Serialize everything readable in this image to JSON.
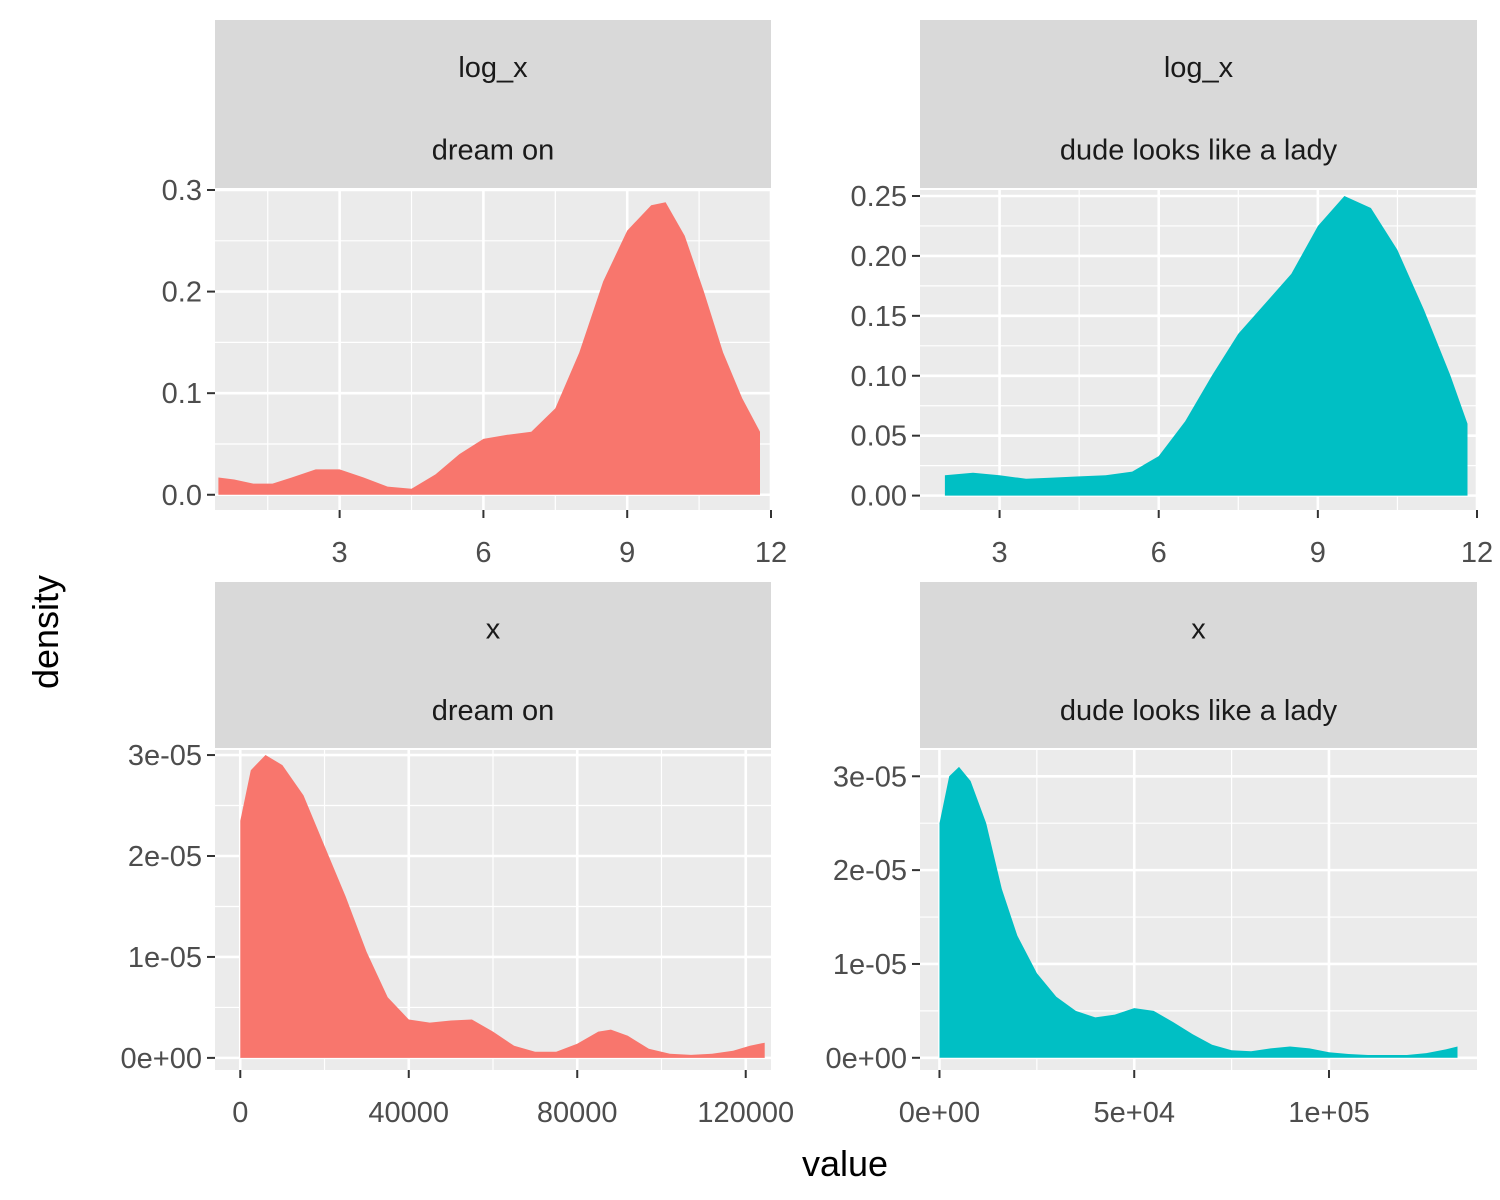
{
  "chart_data": {
    "type": "area",
    "xlabel": "value",
    "ylabel": "density",
    "grid": true,
    "legend": "none",
    "colors": {
      "dream on": "#F8766D",
      "dude looks like a lady": "#00BFC4",
      "panel_bg": "#EBEBEB",
      "strip_bg": "#D9D9D9"
    },
    "panels": [
      {
        "strip": [
          "log_x",
          "dream on"
        ],
        "color": "#F8766D",
        "xlim": [
          0.4,
          12.0
        ],
        "ylim": [
          -0.015,
          0.3
        ],
        "xticks": [
          3,
          6,
          9,
          12
        ],
        "xtick_labels": [
          "3",
          "6",
          "9",
          "12"
        ],
        "yticks": [
          0.0,
          0.1,
          0.2,
          0.3
        ],
        "ytick_labels": [
          "0.0",
          "0.1",
          "0.2",
          "0.3"
        ],
        "x": [
          0.47,
          0.8,
          1.2,
          1.6,
          2.0,
          2.5,
          3.0,
          3.5,
          4.0,
          4.5,
          5.0,
          5.5,
          6.0,
          6.5,
          7.0,
          7.5,
          8.0,
          8.5,
          9.0,
          9.5,
          9.8,
          10.2,
          10.6,
          11.0,
          11.4,
          11.77
        ],
        "y": [
          0.017,
          0.015,
          0.011,
          0.011,
          0.017,
          0.025,
          0.025,
          0.017,
          0.008,
          0.006,
          0.02,
          0.04,
          0.055,
          0.059,
          0.062,
          0.085,
          0.14,
          0.21,
          0.26,
          0.285,
          0.288,
          0.255,
          0.2,
          0.14,
          0.095,
          0.062
        ]
      },
      {
        "strip": [
          "log_x",
          "dude looks like a lady"
        ],
        "color": "#00BFC4",
        "xlim": [
          1.5,
          12.0
        ],
        "ylim": [
          -0.012,
          0.255
        ],
        "xticks": [
          3,
          6,
          9,
          12
        ],
        "xtick_labels": [
          "3",
          "6",
          "9",
          "12"
        ],
        "yticks": [
          0.0,
          0.05,
          0.1,
          0.15,
          0.2,
          0.25
        ],
        "ytick_labels": [
          "0.00",
          "0.05",
          "0.10",
          "0.15",
          "0.20",
          "0.25"
        ],
        "x": [
          1.97,
          2.5,
          3.0,
          3.5,
          4.0,
          4.5,
          5.0,
          5.5,
          6.0,
          6.5,
          7.0,
          7.5,
          8.0,
          8.5,
          9.0,
          9.5,
          10.0,
          10.5,
          11.0,
          11.5,
          11.82
        ],
        "y": [
          0.017,
          0.019,
          0.017,
          0.014,
          0.015,
          0.016,
          0.017,
          0.02,
          0.033,
          0.062,
          0.1,
          0.135,
          0.16,
          0.185,
          0.225,
          0.25,
          0.24,
          0.205,
          0.155,
          0.1,
          0.06
        ]
      },
      {
        "strip": [
          "x",
          "dream on"
        ],
        "color": "#F8766D",
        "xlim": [
          -6000,
          126000
        ],
        "ylim": [
          -1.2e-06,
          3.05e-05
        ],
        "xticks": [
          0,
          40000,
          80000,
          120000
        ],
        "xtick_labels": [
          "0",
          "40000",
          "80000",
          "120000"
        ],
        "yticks": [
          0,
          1e-05,
          2e-05,
          3e-05
        ],
        "ytick_labels": [
          "0e+00",
          "1e-05",
          "2e-05",
          "3e-05"
        ],
        "x": [
          0,
          2500,
          6000,
          10000,
          15000,
          20000,
          25000,
          30000,
          35000,
          40000,
          45000,
          50000,
          55000,
          60000,
          65000,
          70000,
          75000,
          80000,
          85000,
          88000,
          92000,
          97000,
          102000,
          107000,
          112000,
          117000,
          121000,
          124500
        ],
        "y": [
          2.35e-05,
          2.85e-05,
          3e-05,
          2.9e-05,
          2.6e-05,
          2.1e-05,
          1.6e-05,
          1.05e-05,
          6e-06,
          3.8e-06,
          3.5e-06,
          3.7e-06,
          3.8e-06,
          2.6e-06,
          1.2e-06,
          6e-07,
          6e-07,
          1.4e-06,
          2.6e-06,
          2.8e-06,
          2.2e-06,
          9e-07,
          4e-07,
          3e-07,
          4e-07,
          7e-07,
          1.2e-06,
          1.5e-06
        ]
      },
      {
        "strip": [
          "x",
          "dude looks like a lady"
        ],
        "color": "#00BFC4",
        "xlim": [
          -5000,
          138000
        ],
        "ylim": [
          -1.3e-06,
          3.28e-05
        ],
        "xticks": [
          0,
          50000,
          100000
        ],
        "xtick_labels": [
          "0e+00",
          "5e+04",
          "1e+05"
        ],
        "yticks": [
          0,
          1e-05,
          2e-05,
          3e-05
        ],
        "ytick_labels": [
          "0e+00",
          "1e-05",
          "2e-05",
          "3e-05"
        ],
        "x": [
          0,
          2500,
          5000,
          8000,
          12000,
          16000,
          20000,
          25000,
          30000,
          35000,
          40000,
          45000,
          50000,
          55000,
          60000,
          65000,
          70000,
          75000,
          80000,
          85000,
          90000,
          95000,
          100000,
          105000,
          110000,
          115000,
          120000,
          125000,
          130000,
          133000
        ],
        "y": [
          2.5e-05,
          3e-05,
          3.1e-05,
          2.95e-05,
          2.5e-05,
          1.8e-05,
          1.3e-05,
          9e-06,
          6.5e-06,
          5e-06,
          4.3e-06,
          4.6e-06,
          5.3e-06,
          5e-06,
          3.8e-06,
          2.5e-06,
          1.4e-06,
          8e-07,
          7e-07,
          1e-06,
          1.2e-06,
          1e-06,
          6e-07,
          4e-07,
          3e-07,
          3e-07,
          3e-07,
          5e-07,
          9e-07,
          1.2e-06
        ]
      }
    ]
  }
}
